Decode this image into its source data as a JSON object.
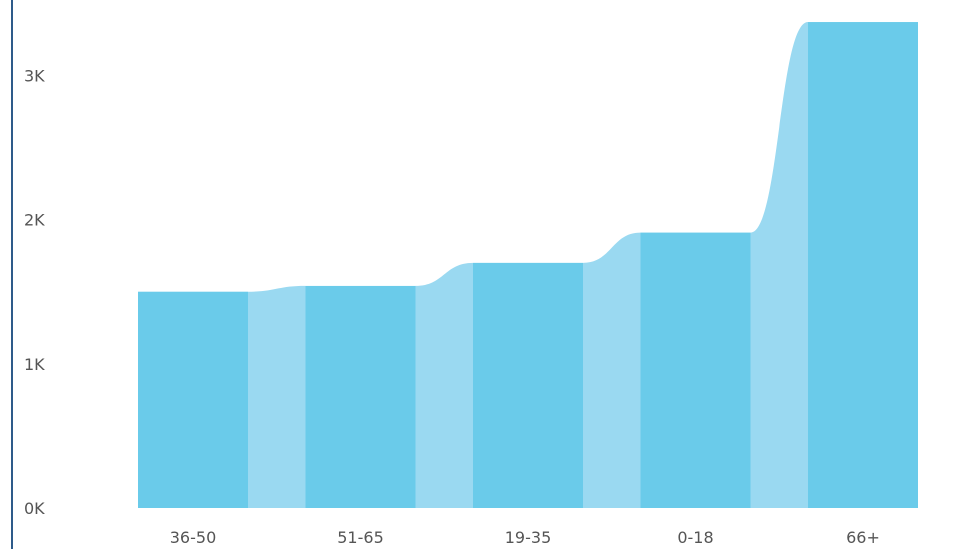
{
  "chart_data": {
    "type": "bar",
    "categories": [
      "36-50",
      "51-65",
      "19-35",
      "0-18",
      "66+"
    ],
    "values": [
      1500,
      1540,
      1700,
      1910,
      3370
    ],
    "ylim": [
      0,
      3500
    ],
    "y_ticks": [
      {
        "value": 0,
        "label": "0K"
      },
      {
        "value": 1000,
        "label": "1K"
      },
      {
        "value": 2000,
        "label": "2K"
      },
      {
        "value": 3000,
        "label": "3K"
      }
    ],
    "grid": false,
    "legend": "none",
    "colors": {
      "bar": "#6acbea",
      "connector": "#9ad9f1",
      "axis_line": "#2e5b8a"
    }
  }
}
